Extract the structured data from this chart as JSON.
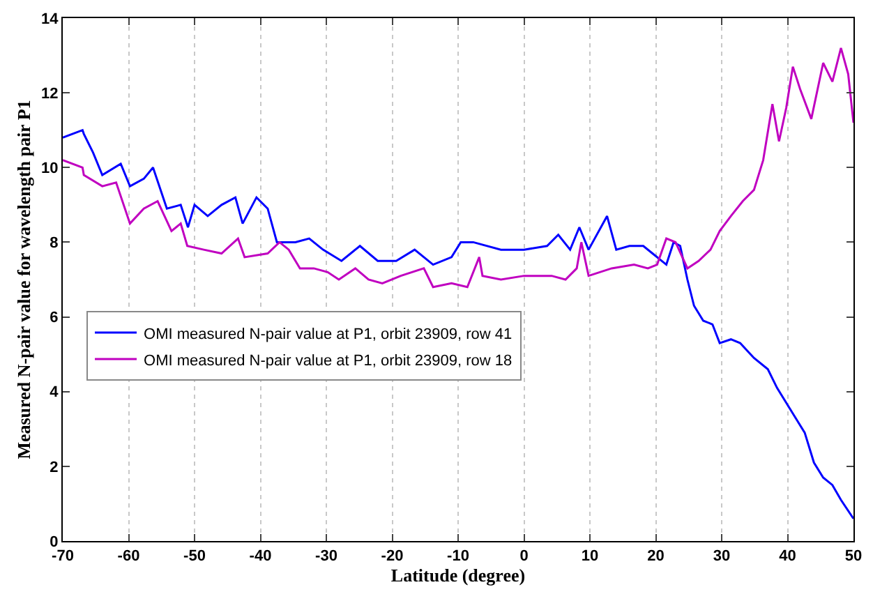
{
  "chart_data": {
    "type": "line",
    "xlabel": "Latitude (degree)",
    "ylabel": "Measured N-pair value for wavelength pair P1",
    "xlim": [
      -70,
      50
    ],
    "xticks": [
      -70,
      -60,
      -50,
      -40,
      -30,
      -20,
      -10,
      0,
      10,
      20,
      30,
      40,
      50
    ],
    "ylim": [
      0,
      14
    ],
    "yticks": [
      0,
      2,
      4,
      6,
      8,
      10,
      12,
      14
    ],
    "grid": "x",
    "legend": "left",
    "line_style": "solid",
    "marker": "none",
    "series": [
      {
        "name": "OMI measured N-pair value at P1, orbit 23909, row 41",
        "color": "#0000ff",
        "x": [
          -70,
          -67,
          -66.8,
          -65.4,
          -64,
          -61.2,
          -59.8,
          -57.7,
          -56.3,
          -54.2,
          -52.1,
          -51,
          -50,
          -48,
          -45.9,
          -43.8,
          -42.7,
          -40.6,
          -38.9,
          -37.5,
          -34.7,
          -32.6,
          -30.5,
          -27.7,
          -24.9,
          -22.2,
          -19.4,
          -16.6,
          -13.8,
          -11,
          -9.6,
          -7.7,
          -3.5,
          0,
          3.5,
          5.2,
          7,
          8.4,
          9.8,
          12.6,
          14,
          16,
          18.1,
          19.5,
          21.6,
          22.7,
          23.7,
          24.8,
          25.8,
          27.2,
          28.6,
          29.7,
          31.4,
          32.8,
          34.9,
          37,
          38.4,
          39.8,
          41.2,
          42.6,
          44,
          45.4,
          46.8,
          48.1,
          50
        ],
        "values": [
          10.8,
          11.0,
          10.9,
          10.4,
          9.8,
          10.1,
          9.5,
          9.7,
          10.0,
          8.9,
          9.0,
          8.4,
          9.0,
          8.7,
          9.0,
          9.2,
          8.5,
          9.2,
          8.9,
          8.0,
          8.0,
          8.1,
          7.8,
          7.5,
          7.9,
          7.5,
          7.5,
          7.8,
          7.4,
          7.6,
          8.0,
          8.0,
          7.8,
          7.8,
          7.9,
          8.2,
          7.8,
          8.4,
          7.8,
          8.7,
          7.8,
          7.9,
          7.9,
          7.7,
          7.4,
          8.0,
          7.9,
          7.0,
          6.3,
          5.9,
          5.8,
          5.3,
          5.4,
          5.3,
          4.9,
          4.6,
          4.1,
          3.7,
          3.3,
          2.9,
          2.1,
          1.7,
          1.5,
          1.1,
          0.6
        ]
      },
      {
        "name": "OMI measured N-pair value at P1, orbit 23909, row 18",
        "color": "#c000c0",
        "x": [
          -70,
          -67,
          -66.8,
          -64,
          -61.9,
          -59.8,
          -57.7,
          -55.6,
          -53.5,
          -52.1,
          -51.1,
          -48.6,
          -45.9,
          -43.4,
          -42.4,
          -38.9,
          -37.1,
          -35.7,
          -34,
          -31.9,
          -29.8,
          -28.1,
          -25.6,
          -23.6,
          -21.5,
          -18.7,
          -15.2,
          -13.8,
          -11,
          -8.6,
          -6.8,
          -6.3,
          -3.5,
          0,
          4.2,
          6.3,
          8,
          8.7,
          9.8,
          13.3,
          16.7,
          18.8,
          20.2,
          21.6,
          23,
          24.8,
          26.5,
          28.3,
          29.7,
          31.4,
          33.2,
          34.9,
          36.3,
          37.7,
          38.7,
          39.8,
          40.8,
          41.9,
          43.6,
          45.4,
          46.8,
          48.1,
          49.2,
          50
        ],
        "values": [
          10.2,
          10.0,
          9.8,
          9.5,
          9.6,
          8.5,
          8.9,
          9.1,
          8.3,
          8.5,
          7.9,
          7.8,
          7.7,
          8.1,
          7.6,
          7.7,
          8.0,
          7.8,
          7.3,
          7.3,
          7.2,
          7.0,
          7.3,
          7.0,
          6.9,
          7.1,
          7.3,
          6.8,
          6.9,
          6.8,
          7.6,
          7.1,
          7.0,
          7.1,
          7.1,
          7.0,
          7.3,
          8.0,
          7.1,
          7.3,
          7.4,
          7.3,
          7.4,
          8.1,
          8.0,
          7.3,
          7.5,
          7.8,
          8.3,
          8.7,
          9.1,
          9.4,
          10.2,
          11.7,
          10.7,
          11.6,
          12.7,
          12.1,
          11.3,
          12.8,
          12.3,
          13.2,
          12.5,
          11.2
        ]
      }
    ]
  }
}
